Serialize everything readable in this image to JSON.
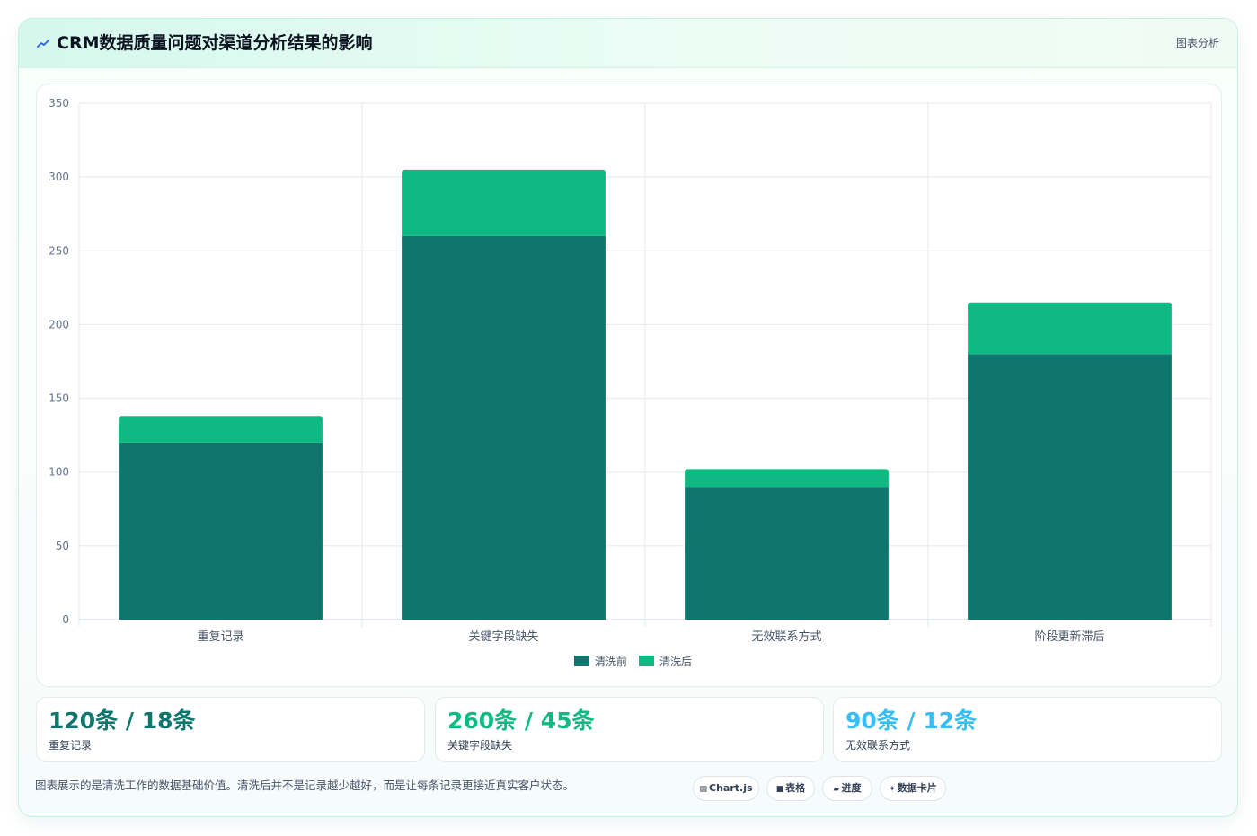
{
  "header": {
    "icon": "trend-icon",
    "title": "CRM数据质量问题对渠道分析结果的影响",
    "right_label": "图表分析"
  },
  "chart_data": {
    "type": "bar",
    "stacked": true,
    "categories": [
      "重复记录",
      "关键字段缺失",
      "无效联系方式",
      "阶段更新滞后"
    ],
    "series": [
      {
        "name": "清洗前",
        "values": [
          120,
          260,
          90,
          180
        ],
        "color": "#0f766e"
      },
      {
        "name": "清洗后",
        "values": [
          18,
          45,
          12,
          35
        ],
        "color": "#10b981"
      }
    ],
    "ylim": [
      0,
      350
    ],
    "yticks": [
      0,
      50,
      100,
      150,
      200,
      250,
      300,
      350
    ],
    "grid": true,
    "legend": "bottom"
  },
  "stats": [
    {
      "value": "120条 / 18条",
      "label": "重复记录",
      "color": "#0f766e"
    },
    {
      "value": "260条 / 45条",
      "label": "关键字段缺失",
      "color": "#10b981"
    },
    {
      "value": "90条 / 12条",
      "label": "无效联系方式",
      "color": "#38bdf8"
    }
  ],
  "footnote": "图表展示的是清洗工作的数据基础价值。清洗后并不是记录越少越好，而是让每条记录更接近真实客户状态。",
  "tags": [
    {
      "icon": "chart-icon",
      "glyph": "▤",
      "label": "Chart.js"
    },
    {
      "icon": "table-icon",
      "glyph": "■",
      "label": "表格"
    },
    {
      "icon": "progress-icon",
      "glyph": "▰",
      "label": "进度"
    },
    {
      "icon": "data-card-icon",
      "glyph": "✦",
      "label": "数据卡片"
    }
  ]
}
